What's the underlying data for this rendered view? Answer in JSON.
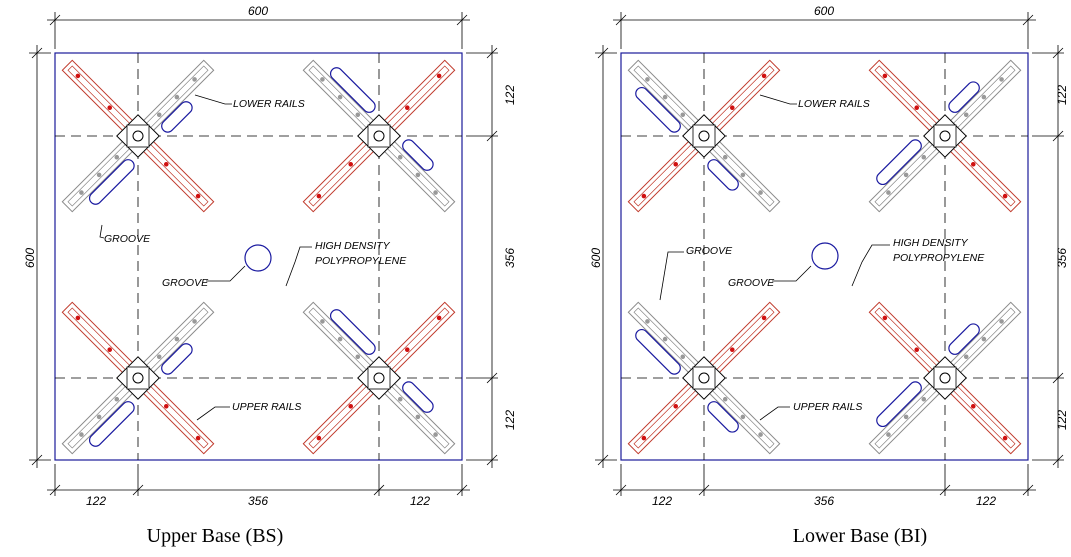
{
  "panels": [
    {
      "caption": "Upper Base (BS)",
      "dimensions": {
        "top": 600,
        "left": 600,
        "right": [
          122,
          356,
          122
        ],
        "bottom": [
          122,
          356,
          122
        ]
      },
      "labels": {
        "lower_rails": "LOWER RAILS",
        "groove_rail": "GROOVE",
        "groove_center": "GROOVE",
        "material_line1": "HIGH DENSITY",
        "material_line2": "POLYPROPYLENE",
        "upper_rails": "UPPER RAILS"
      }
    },
    {
      "caption": "Lower Base (BI)",
      "dimensions": {
        "top": 600,
        "left": 600,
        "right": [
          122,
          356,
          122
        ],
        "bottom": [
          122,
          356,
          122
        ]
      },
      "labels": {
        "lower_rails": "LOWER RAILS",
        "groove_rail": "GROOVE",
        "groove_center": "GROOVE",
        "material_line1": "HIGH DENSITY",
        "material_line2": "POLYPROPYLENE",
        "upper_rails": "UPPER RAILS"
      }
    }
  ]
}
